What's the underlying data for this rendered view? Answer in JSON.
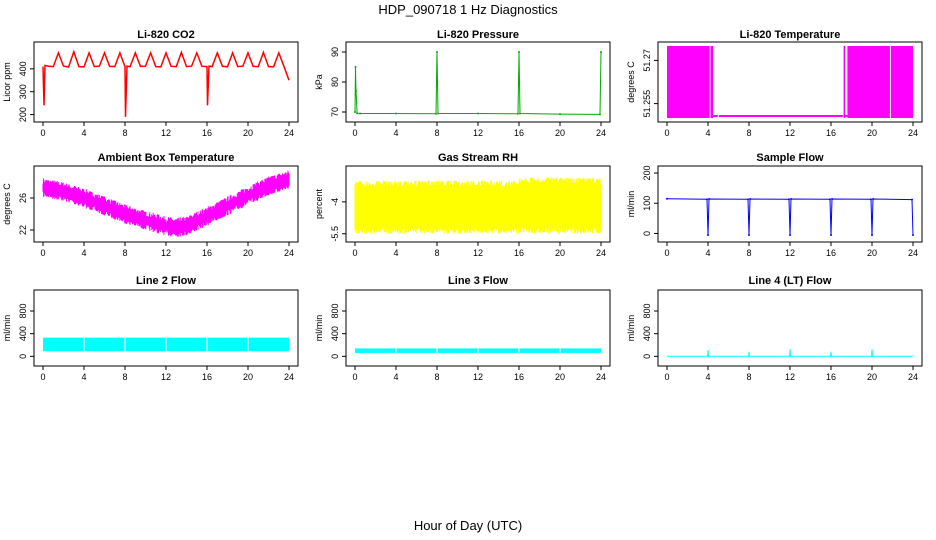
{
  "title": "HDP_090718 1 Hz Diagnostics",
  "xlabel": "Hour of Day (UTC)",
  "chart_data": [
    {
      "type": "line",
      "title": "Li-820 CO2",
      "ylabel": "Licor ppm",
      "color": "#ff0000",
      "xlim": [
        0,
        24
      ],
      "ylim": [
        185,
        500
      ],
      "yticks": [
        200,
        300,
        400
      ],
      "xticks": [
        0,
        4,
        8,
        12,
        16,
        20,
        24
      ],
      "series": [
        {
          "x": [
            0,
            0.1,
            0.2,
            0.5,
            1,
            1.5,
            2,
            2.5,
            3,
            3.5,
            4,
            4.5,
            5,
            5.5,
            6,
            6.5,
            7,
            7.5,
            8,
            8.05,
            8.2,
            8.5,
            9,
            9.5,
            10,
            10.5,
            11,
            11.5,
            12,
            12.5,
            13,
            13.5,
            14,
            14.5,
            15,
            15.5,
            16,
            16.05,
            16.2,
            16.5,
            17,
            17.5,
            18,
            18.5,
            19,
            19.5,
            20,
            20.5,
            21,
            21.5,
            22,
            22.5,
            23,
            23.5,
            24
          ],
          "y": [
            410,
            240,
            415,
            412,
            410,
            470,
            412,
            408,
            475,
            410,
            409,
            470,
            410,
            412,
            470,
            411,
            410,
            470,
            410,
            190,
            412,
            410,
            470,
            411,
            412,
            470,
            410,
            409,
            470,
            411,
            410,
            472,
            410,
            412,
            470,
            411,
            410,
            240,
            412,
            410,
            470,
            411,
            409,
            470,
            410,
            412,
            470,
            411,
            410,
            472,
            410,
            409,
            470,
            411,
            350
          ]
        }
      ]
    },
    {
      "type": "line",
      "title": "Li-820 Pressure",
      "ylabel": "kPa",
      "color": "#00aa00",
      "xlim": [
        0,
        24
      ],
      "ylim": [
        68,
        92
      ],
      "yticks": [
        70,
        80,
        90
      ],
      "xticks": [
        0,
        4,
        8,
        12,
        16,
        20,
        24
      ],
      "series": [
        {
          "x": [
            0,
            0.05,
            0.1,
            0.2,
            0.5,
            4,
            7.9,
            8,
            8.1,
            12,
            15.9,
            16,
            16.1,
            20,
            23.9,
            24
          ],
          "y": [
            70,
            85,
            77,
            69.6,
            69.5,
            69.5,
            69.4,
            90,
            69.5,
            69.5,
            69.4,
            90,
            69.5,
            69.3,
            69.2,
            90
          ]
        }
      ]
    },
    {
      "type": "area",
      "title": "Li-820 Temperature",
      "ylabel": "degrees C",
      "color": "#ff00ff",
      "xlim": [
        0,
        24
      ],
      "ylim": [
        51.25,
        51.275
      ],
      "yticks": [
        51.255,
        51.27
      ],
      "xticks": [
        0,
        4,
        8,
        12,
        16,
        20,
        24
      ],
      "series": [
        {
          "x": [
            0,
            4.5,
            5.2,
            17.6,
            24
          ],
          "y_low": [
            51.25,
            51.25,
            51.25,
            51.25,
            51.25
          ],
          "y_high": [
            51.275,
            51.275,
            51.251,
            51.275,
            51.275
          ]
        }
      ]
    },
    {
      "type": "line",
      "title": "Ambient Box Temperature",
      "ylabel": "degrees C",
      "color": "#ff00ff",
      "xlim": [
        0,
        24
      ],
      "ylim": [
        21,
        29.5
      ],
      "yticks": [
        22,
        26
      ],
      "xticks": [
        0,
        4,
        8,
        12,
        16,
        20,
        24
      ],
      "series": [
        {
          "x": [
            0,
            2,
            4,
            6,
            8,
            10,
            12,
            13,
            14,
            16,
            18,
            20,
            22,
            24
          ],
          "y": [
            27.3,
            26.8,
            26,
            25,
            24,
            23.2,
            22.5,
            22.3,
            22.5,
            23.7,
            25,
            26.3,
            27.5,
            28.3
          ]
        }
      ]
    },
    {
      "type": "line",
      "title": "Gas Stream RH",
      "ylabel": "percent",
      "color": "#ffff00",
      "xlim": [
        0,
        24
      ],
      "ylim": [
        -5.7,
        -2.5
      ],
      "yticks": [
        -5.5,
        -4.0
      ],
      "xticks": [
        0,
        4,
        8,
        12,
        16,
        20,
        24
      ],
      "series": [
        {
          "x": [
            0,
            24
          ],
          "y_low": [
            -5.5,
            -5.5
          ],
          "y_high": [
            -3.0,
            -2.9
          ]
        }
      ]
    },
    {
      "type": "line",
      "title": "Sample Flow",
      "ylabel": "ml/min",
      "color": "#0000ff",
      "xlim": [
        0,
        24
      ],
      "ylim": [
        -15,
        210
      ],
      "yticks": [
        0,
        100,
        200
      ],
      "xticks": [
        0,
        4,
        8,
        12,
        16,
        20,
        24
      ],
      "series": [
        {
          "x": [
            0,
            3.9,
            4,
            4.1,
            7.9,
            8,
            8.1,
            11.9,
            12,
            12.1,
            15.9,
            16,
            16.1,
            19.9,
            20,
            20.1,
            23.9,
            24
          ],
          "y": [
            115,
            113,
            -5,
            114,
            113,
            -5,
            114,
            113,
            -5,
            114,
            113,
            -5,
            114,
            113,
            -5,
            114,
            112,
            -5
          ]
        }
      ]
    },
    {
      "type": "area",
      "title": "Line 2 Flow",
      "ylabel": "ml/min",
      "color": "#00ffff",
      "xlim": [
        0,
        24
      ],
      "ylim": [
        -100,
        1100
      ],
      "yticks": [
        0,
        400,
        800
      ],
      "xticks": [
        0,
        4,
        8,
        12,
        16,
        20,
        24
      ],
      "series": [
        {
          "x": [
            0,
            24
          ],
          "y_low": [
            90,
            90
          ],
          "y_high": [
            330,
            330
          ]
        }
      ]
    },
    {
      "type": "area",
      "title": "Line 3 Flow",
      "ylabel": "ml/min",
      "color": "#00ffff",
      "xlim": [
        0,
        24
      ],
      "ylim": [
        -100,
        1100
      ],
      "yticks": [
        0,
        400,
        800
      ],
      "xticks": [
        0,
        4,
        8,
        12,
        16,
        20,
        24
      ],
      "series": [
        {
          "x": [
            0,
            24
          ],
          "y_low": [
            60,
            60
          ],
          "y_high": [
            140,
            140
          ]
        }
      ]
    },
    {
      "type": "line",
      "title": "Line 4 (LT) Flow",
      "ylabel": "ml/min",
      "color": "#00ffff",
      "xlim": [
        0,
        24
      ],
      "ylim": [
        -100,
        1100
      ],
      "yticks": [
        0,
        400,
        800
      ],
      "xticks": [
        0,
        4,
        8,
        12,
        16,
        20,
        24
      ],
      "series": [
        {
          "x": [
            0,
            3.95,
            4,
            4.05,
            7.95,
            8,
            8.05,
            11.95,
            12,
            12.05,
            15.95,
            16,
            16.05,
            19.95,
            20,
            20.05,
            24
          ],
          "y": [
            0,
            0,
            110,
            0,
            0,
            80,
            0,
            0,
            130,
            0,
            0,
            80,
            0,
            0,
            120,
            0,
            0
          ]
        }
      ]
    }
  ]
}
